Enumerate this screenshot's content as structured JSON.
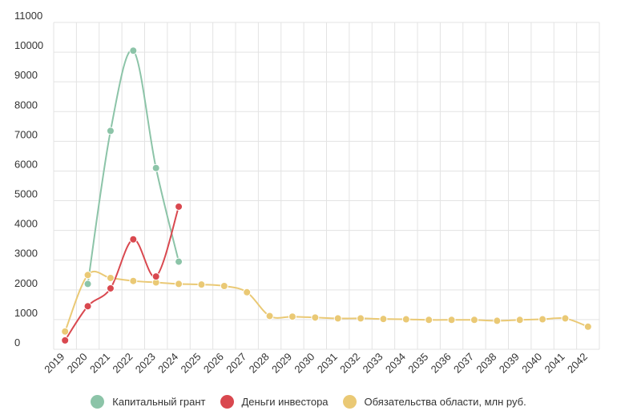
{
  "chart_data": {
    "type": "line",
    "title": "",
    "xlabel": "",
    "ylabel": "",
    "x": [
      "2019",
      "2020",
      "2021",
      "2022",
      "2023",
      "2024",
      "2025",
      "2026",
      "2027",
      "2028",
      "2029",
      "2030",
      "2031",
      "2032",
      "2033",
      "2034",
      "2035",
      "2036",
      "2037",
      "2038",
      "2039",
      "2040",
      "2041",
      "2042"
    ],
    "yticks": [
      "0",
      "1000",
      "2000",
      "3000",
      "4000",
      "5000",
      "6000",
      "7000",
      "8000",
      "9000",
      "10000",
      "11000"
    ],
    "ylim": [
      0,
      11000
    ],
    "grid": true,
    "legend_position": "bottom",
    "series": [
      {
        "name": "Капитальный грант",
        "color": "#8cc4a8",
        "values": [
          null,
          2200,
          7350,
          10050,
          6100,
          2950,
          null,
          null,
          null,
          null,
          null,
          null,
          null,
          null,
          null,
          null,
          null,
          null,
          null,
          null,
          null,
          null,
          null,
          null
        ]
      },
      {
        "name": "Деньги инвестора",
        "color": "#d9484f",
        "values": [
          300,
          1450,
          2050,
          3700,
          2450,
          4800,
          null,
          null,
          null,
          null,
          null,
          null,
          null,
          null,
          null,
          null,
          null,
          null,
          null,
          null,
          null,
          null,
          null,
          null
        ]
      },
      {
        "name": "Обязательства области, млн руб.",
        "color": "#eac975",
        "values": [
          600,
          2500,
          2400,
          2300,
          2250,
          2200,
          2180,
          2130,
          1920,
          1120,
          1100,
          1070,
          1040,
          1040,
          1020,
          1010,
          990,
          990,
          990,
          960,
          990,
          1010,
          1040,
          760
        ]
      }
    ]
  }
}
